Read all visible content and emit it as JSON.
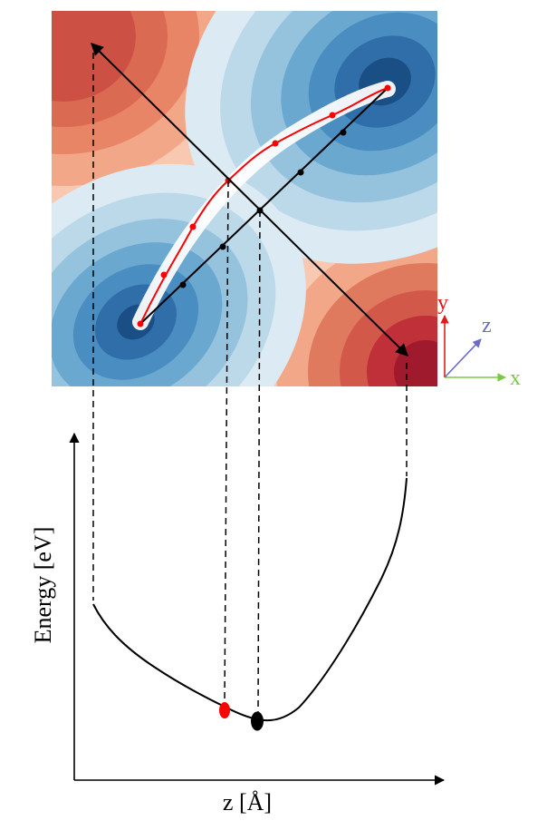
{
  "axes": {
    "ylabel": "Energy [eV]",
    "xlabel": "z [Å]"
  },
  "coordinate_axes": {
    "x": {
      "label": "x",
      "color": "#7ac943"
    },
    "y": {
      "label": "y",
      "color": "#e31a1c"
    },
    "z": {
      "label": "z",
      "color": "#6a6acd"
    }
  },
  "colors": {
    "low_energy": "#2166ac",
    "high_energy": "#b2182b",
    "path_curved": "#ff0000",
    "path_straight": "#000000",
    "sampling_cloud": "#ffffff"
  }
}
